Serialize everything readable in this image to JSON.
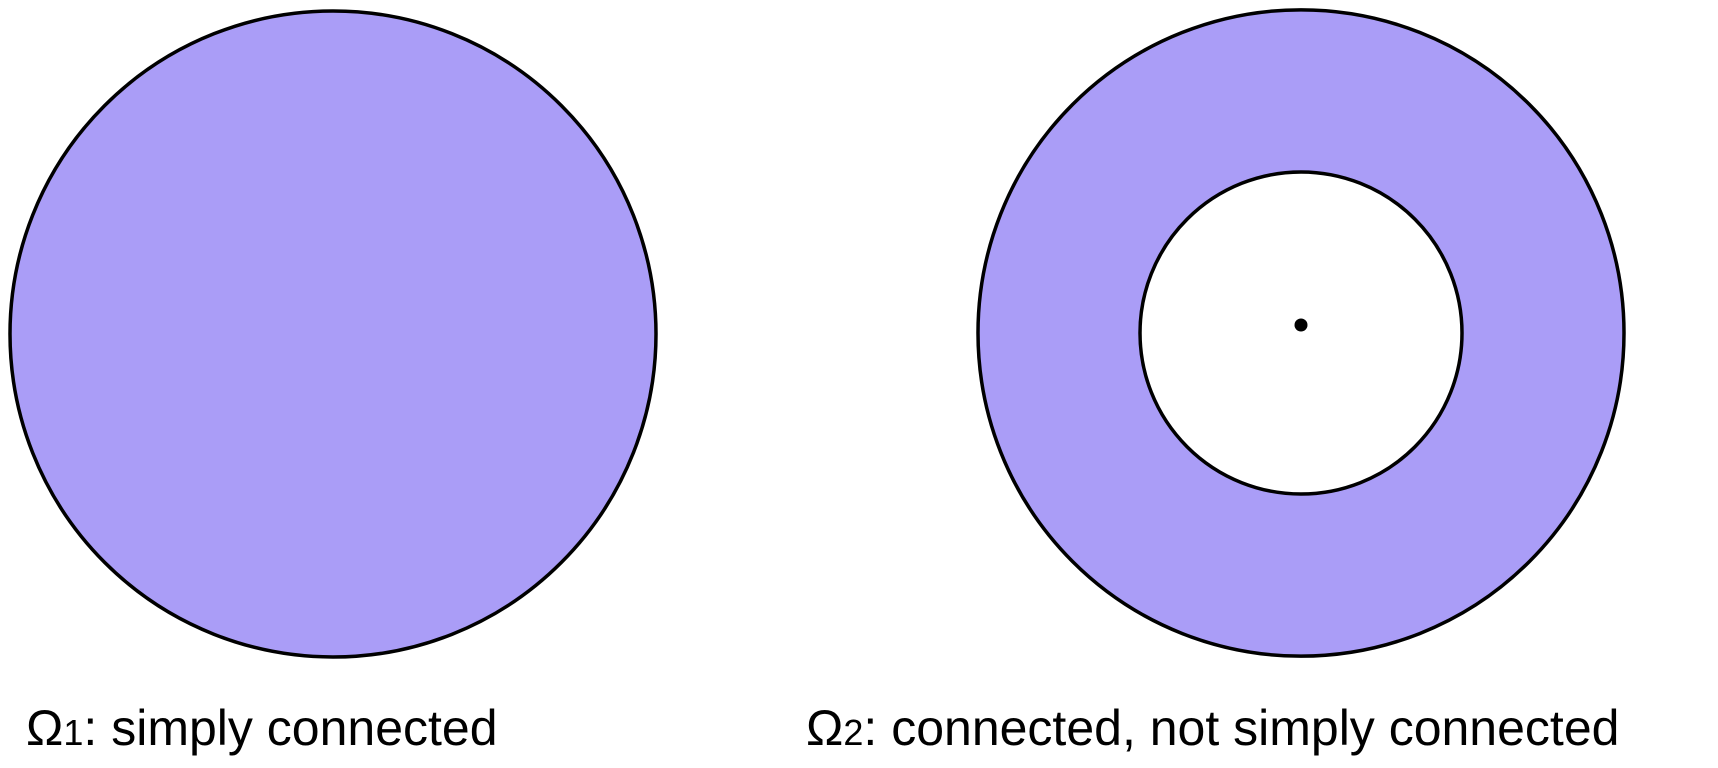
{
  "colors": {
    "fill": "#aa9df7",
    "stroke": "#000000",
    "background": "#ffffff"
  },
  "figures": [
    {
      "symbol": "Ω",
      "subscript": "1",
      "description": ": simply connected"
    },
    {
      "symbol": "Ω",
      "subscript": "2",
      "description": ": connected, not simply connected"
    }
  ]
}
